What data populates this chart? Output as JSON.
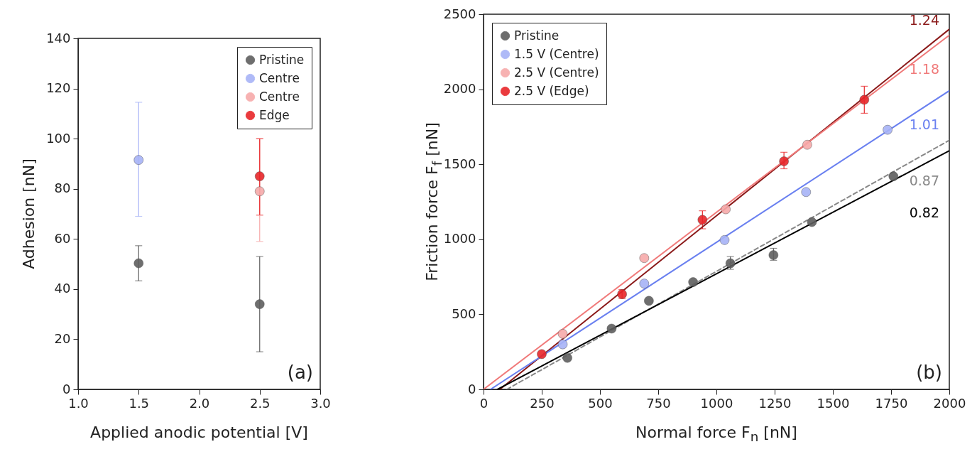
{
  "chart_data": [
    {
      "type": "scatter",
      "xlabel": "Applied anodic potential [V]",
      "ylabel": "Adhesion [nN]",
      "xlim": [
        1.0,
        3.0
      ],
      "ylim": [
        0,
        140
      ],
      "xticks": [
        {
          "value": 1,
          "label": "1.0"
        },
        {
          "value": 1.5,
          "label": "1.5"
        },
        {
          "value": 2,
          "label": "2.0"
        },
        {
          "value": 2.5,
          "label": "2.5"
        },
        {
          "value": 3,
          "label": "3.0"
        }
      ],
      "yticks": [
        0,
        20,
        40,
        60,
        80,
        100,
        120,
        140
      ],
      "grid": false,
      "legend": "top right",
      "marker": "circle",
      "annotations": [
        "(a)"
      ],
      "series": [
        {
          "name": "Pristine",
          "color": "#5f5f5f",
          "x": [
            1.5,
            2.5
          ],
          "values": [
            50.3,
            34
          ],
          "errors": [
            [
              43.3,
              57.3
            ],
            [
              15,
              53
            ]
          ]
        },
        {
          "name": "Centre",
          "color": "#a7b3f7",
          "x": [
            1.5
          ],
          "values": [
            91.5
          ],
          "errors": [
            [
              69,
              114.5
            ]
          ]
        },
        {
          "name": "Centre",
          "color": "#f7aaaa",
          "x": [
            2.5
          ],
          "values": [
            79
          ],
          "errors": [
            [
              59,
              100
            ]
          ]
        },
        {
          "name": "Edge",
          "color": "#e8262a",
          "x": [
            2.5
          ],
          "values": [
            85
          ],
          "errors": [
            [
              69.5,
              100
            ]
          ]
        }
      ]
    },
    {
      "type": "scatter",
      "xlabel": "Normal force F$_{n}$ [nN]",
      "ylabel": "Friction force F$_{f}$ [nN]",
      "xlim": [
        0,
        2000
      ],
      "ylim": [
        0,
        2500
      ],
      "xticks": [
        0,
        250,
        500,
        750,
        1000,
        1250,
        1500,
        1750,
        2000
      ],
      "yticks": [
        0,
        500,
        1000,
        1500,
        2000,
        2500
      ],
      "grid": false,
      "legend": "top left",
      "marker": "circle",
      "annotations": [
        "1.24",
        "1.18",
        "1.01",
        "0.87",
        "0.82",
        "(b)"
      ],
      "series": [
        {
          "name": "Pristine",
          "color": "#5f5f5f",
          "x": [
            360,
            550,
            710,
            900,
            1060,
            1245,
            1410,
            1760
          ],
          "values": [
            210,
            405,
            590,
            715,
            840,
            895,
            1115,
            1420
          ],
          "errors": [
            null,
            null,
            null,
            null,
            [
              800,
              885
            ],
            [
              860,
              940
            ],
            null,
            null
          ]
        },
        {
          "name": "1.5 V (Centre)",
          "color": "#a7b3f7",
          "x": [
            340,
            690,
            1035,
            1385,
            1735
          ],
          "values": [
            300,
            705,
            995,
            1315,
            1730
          ]
        },
        {
          "name": "2.5 V (Centre)",
          "color": "#f7aaaa",
          "x": [
            340,
            690,
            1040,
            1390
          ],
          "values": [
            370,
            875,
            1200,
            1630
          ]
        },
        {
          "name": "2.5 V (Edge)",
          "color": "#e8262a",
          "x": [
            250,
            595,
            940,
            1290,
            1635
          ],
          "values": [
            235,
            635,
            1130,
            1520,
            1930
          ],
          "errors": [
            null,
            [
              605,
              665
            ],
            [
              1070,
              1190
            ],
            [
              1470,
              1580
            ],
            [
              1840,
              2020
            ]
          ]
        },
        {
          "type": "line",
          "color": "#8b1a1a",
          "marker": "none",
          "x": [
            70,
            2000
          ],
          "values": [
            0,
            2400
          ]
        },
        {
          "type": "line",
          "color": "#f07a7a",
          "marker": "none",
          "x": [
            0,
            2000
          ],
          "values": [
            0,
            2360
          ]
        },
        {
          "type": "line",
          "color": "#6a80f0",
          "marker": "none",
          "x": [
            30,
            2000
          ],
          "values": [
            0,
            1990
          ]
        },
        {
          "type": "line",
          "color": "#888888",
          "marker": "none",
          "line_style": "dashed",
          "x": [
            100,
            2000
          ],
          "values": [
            0,
            1660
          ]
        },
        {
          "type": "line",
          "color": "#000000",
          "marker": "none",
          "x": [
            60,
            2000
          ],
          "values": [
            0,
            1590
          ]
        }
      ]
    }
  ]
}
